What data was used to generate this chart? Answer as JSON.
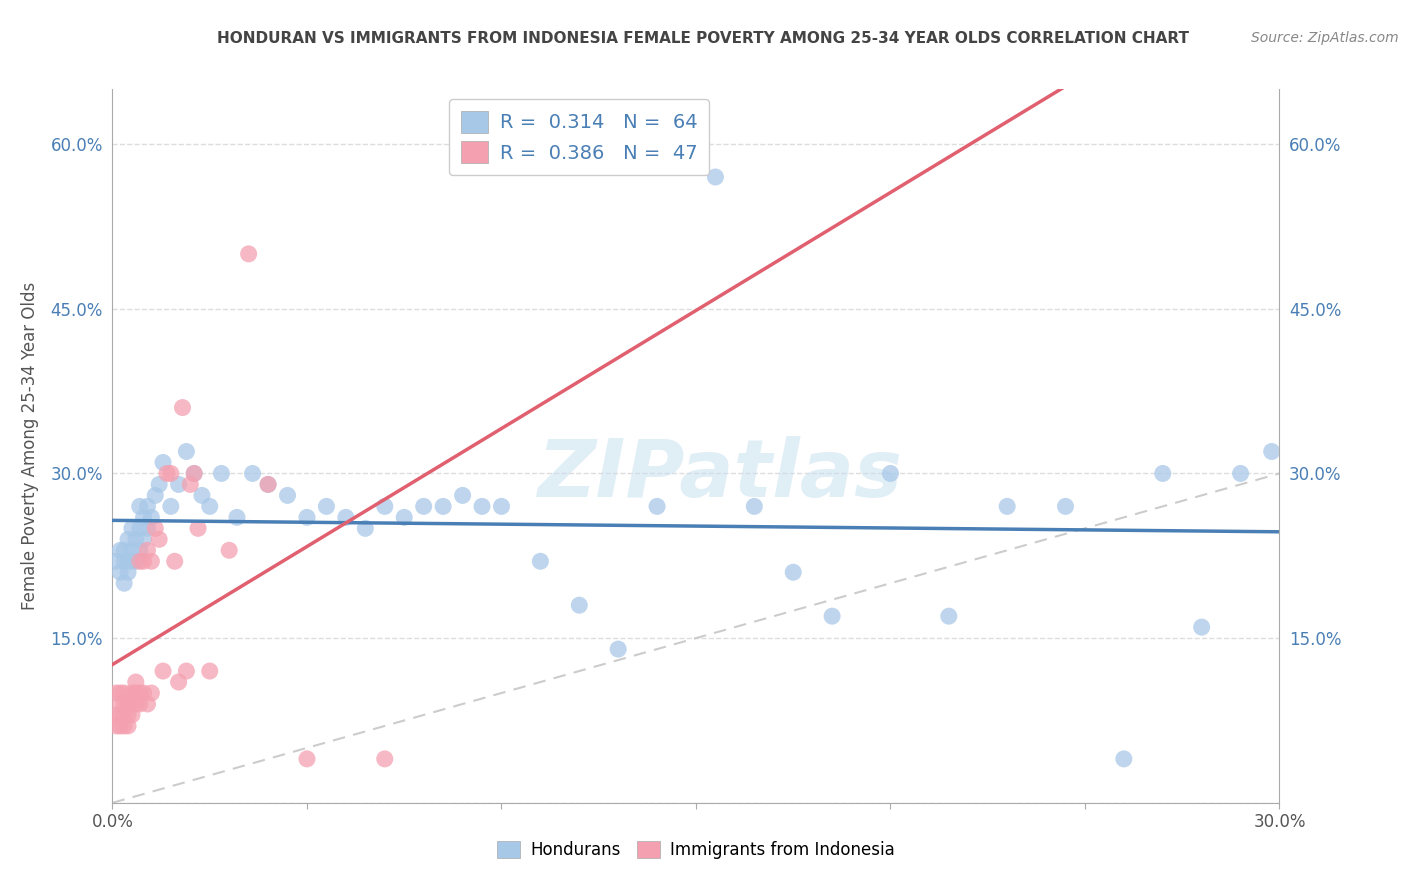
{
  "title": "HONDURAN VS IMMIGRANTS FROM INDONESIA FEMALE POVERTY AMONG 25-34 YEAR OLDS CORRELATION CHART",
  "source": "Source: ZipAtlas.com",
  "ylabel_label": "Female Poverty Among 25-34 Year Olds",
  "xlim": [
    0.0,
    0.3
  ],
  "ylim": [
    0.0,
    0.65
  ],
  "xticks": [
    0.0,
    0.05,
    0.1,
    0.15,
    0.2,
    0.25,
    0.3
  ],
  "xticklabels": [
    "0.0%",
    "",
    "",
    "",
    "",
    "",
    "30.0%"
  ],
  "yticks": [
    0.0,
    0.15,
    0.3,
    0.45,
    0.6
  ],
  "yticklabels": [
    "",
    "15.0%",
    "30.0%",
    "45.0%",
    "60.0%"
  ],
  "blue_color": "#a8c8e8",
  "blue_line_color": "#4a7fb5",
  "pink_color": "#f4a0b0",
  "pink_line_color": "#e06070",
  "diagonal_color": "#cccccc",
  "R_blue": "0.314",
  "N_blue": "64",
  "R_pink": "0.386",
  "N_pink": "47",
  "legend_label_blue": "Hondurans",
  "legend_label_pink": "Immigrants from Indonesia",
  "blue_x": [
    0.001,
    0.002,
    0.002,
    0.003,
    0.003,
    0.003,
    0.004,
    0.004,
    0.004,
    0.005,
    0.005,
    0.005,
    0.006,
    0.006,
    0.007,
    0.007,
    0.007,
    0.008,
    0.008,
    0.009,
    0.009,
    0.01,
    0.011,
    0.012,
    0.013,
    0.015,
    0.017,
    0.019,
    0.021,
    0.023,
    0.025,
    0.028,
    0.032,
    0.036,
    0.04,
    0.045,
    0.05,
    0.055,
    0.06,
    0.065,
    0.07,
    0.075,
    0.08,
    0.085,
    0.09,
    0.095,
    0.1,
    0.11,
    0.12,
    0.13,
    0.14,
    0.155,
    0.165,
    0.175,
    0.185,
    0.2,
    0.215,
    0.23,
    0.245,
    0.26,
    0.27,
    0.28,
    0.29,
    0.298
  ],
  "blue_y": [
    0.22,
    0.21,
    0.23,
    0.22,
    0.2,
    0.23,
    0.22,
    0.24,
    0.21,
    0.22,
    0.23,
    0.25,
    0.22,
    0.24,
    0.23,
    0.25,
    0.27,
    0.24,
    0.26,
    0.25,
    0.27,
    0.26,
    0.28,
    0.29,
    0.31,
    0.27,
    0.29,
    0.32,
    0.3,
    0.28,
    0.27,
    0.3,
    0.26,
    0.3,
    0.29,
    0.28,
    0.26,
    0.27,
    0.26,
    0.25,
    0.27,
    0.26,
    0.27,
    0.27,
    0.28,
    0.27,
    0.27,
    0.22,
    0.18,
    0.14,
    0.27,
    0.57,
    0.27,
    0.21,
    0.17,
    0.3,
    0.17,
    0.27,
    0.27,
    0.04,
    0.3,
    0.16,
    0.3,
    0.32
  ],
  "pink_x": [
    0.001,
    0.001,
    0.001,
    0.002,
    0.002,
    0.002,
    0.002,
    0.003,
    0.003,
    0.003,
    0.003,
    0.004,
    0.004,
    0.004,
    0.005,
    0.005,
    0.005,
    0.006,
    0.006,
    0.006,
    0.007,
    0.007,
    0.007,
    0.008,
    0.008,
    0.009,
    0.009,
    0.01,
    0.01,
    0.011,
    0.012,
    0.013,
    0.014,
    0.015,
    0.016,
    0.017,
    0.018,
    0.019,
    0.02,
    0.021,
    0.022,
    0.025,
    0.03,
    0.035,
    0.04,
    0.05,
    0.07
  ],
  "pink_y": [
    0.1,
    0.08,
    0.07,
    0.09,
    0.08,
    0.1,
    0.07,
    0.09,
    0.08,
    0.07,
    0.1,
    0.08,
    0.09,
    0.07,
    0.09,
    0.08,
    0.1,
    0.09,
    0.1,
    0.11,
    0.1,
    0.09,
    0.22,
    0.1,
    0.22,
    0.09,
    0.23,
    0.1,
    0.22,
    0.25,
    0.24,
    0.12,
    0.3,
    0.3,
    0.22,
    0.11,
    0.36,
    0.12,
    0.29,
    0.3,
    0.25,
    0.12,
    0.23,
    0.5,
    0.29,
    0.04,
    0.04
  ],
  "watermark": "ZIPatlas",
  "background_color": "#ffffff",
  "grid_color": "#dddddd",
  "tick_color": "#aaaaaa",
  "axis_label_color": "#4a7fb5",
  "title_color": "#444444",
  "source_color": "#888888"
}
